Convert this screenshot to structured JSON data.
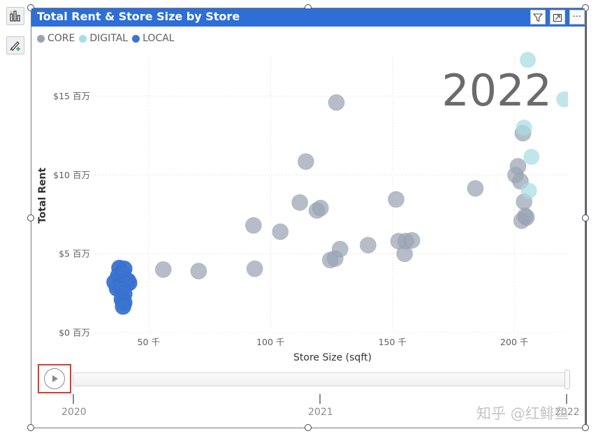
{
  "toolbar": {
    "left_icons": [
      "bar-chart-icon",
      "format-brush-icon"
    ]
  },
  "visual": {
    "title": "Total Rent & Store Size by Store",
    "header_icons": [
      "filter-icon",
      "focus-mode-icon",
      "more-options-icon"
    ],
    "more_label": "···"
  },
  "legend": {
    "items": [
      {
        "label": "CORE",
        "color": "#9aa3b4"
      },
      {
        "label": "DIGITAL",
        "color": "#a8dde2"
      },
      {
        "label": "LOCAL",
        "color": "#3b73d0"
      }
    ]
  },
  "play_axis": {
    "current_label": "2022",
    "ticks": [
      "2020",
      "2021",
      "2022"
    ],
    "play_icon": "play-icon"
  },
  "watermark": "知乎 @红鲱鱼",
  "chart_data": {
    "type": "scatter",
    "title": "Total Rent & Store Size by Store",
    "xlabel": "Store Size (sqft)",
    "ylabel": "Total Rent",
    "xlim": [
      28000,
      222000
    ],
    "ylim": [
      0,
      18000000
    ],
    "x_ticks": [
      50000,
      100000,
      150000,
      200000
    ],
    "x_tick_labels": [
      "50 千",
      "100 千",
      "150 千",
      "200 千"
    ],
    "y_ticks": [
      0,
      5000000,
      10000000,
      15000000
    ],
    "y_tick_labels": [
      "$0 百万",
      "$5 百万",
      "$10 百万",
      "$15 百万"
    ],
    "grid": true,
    "legend_position": "top-left",
    "series": [
      {
        "name": "CORE",
        "color": "#9aa3b4",
        "points": [
          [
            56000,
            4000000
          ],
          [
            70500,
            3900000
          ],
          [
            93000,
            6800000
          ],
          [
            93500,
            4050000
          ],
          [
            104000,
            6400000
          ],
          [
            112000,
            8250000
          ],
          [
            114500,
            10850000
          ],
          [
            119000,
            7750000
          ],
          [
            120500,
            7900000
          ],
          [
            124500,
            4600000
          ],
          [
            126500,
            4700000
          ],
          [
            127000,
            14600000
          ],
          [
            128500,
            5300000
          ],
          [
            140000,
            5550000
          ],
          [
            151500,
            8450000
          ],
          [
            152500,
            5800000
          ],
          [
            155000,
            5000000
          ],
          [
            155500,
            5800000
          ],
          [
            158000,
            5850000
          ],
          [
            184000,
            9150000
          ],
          [
            200500,
            10000000
          ],
          [
            201500,
            10550000
          ],
          [
            202500,
            9600000
          ],
          [
            203000,
            7100000
          ],
          [
            203500,
            12650000
          ],
          [
            204000,
            8300000
          ],
          [
            204500,
            7400000
          ],
          [
            205000,
            7300000
          ]
        ]
      },
      {
        "name": "DIGITAL",
        "color": "#a8dde2",
        "points": [
          [
            205500,
            17300000
          ],
          [
            204000,
            13000000
          ],
          [
            207000,
            11150000
          ],
          [
            206000,
            9000000
          ],
          [
            220500,
            14800000
          ]
        ]
      },
      {
        "name": "LOCAL",
        "color": "#3b73d0",
        "points": [
          [
            38000,
            4100000
          ],
          [
            40000,
            4050000
          ],
          [
            37500,
            3600000
          ],
          [
            39500,
            3700000
          ],
          [
            41500,
            3300000
          ],
          [
            36000,
            3200000
          ],
          [
            42000,
            3150000
          ],
          [
            38500,
            3000000
          ],
          [
            40500,
            3050000
          ],
          [
            37000,
            2800000
          ],
          [
            39000,
            2700000
          ],
          [
            40000,
            2450000
          ],
          [
            39000,
            2100000
          ],
          [
            40000,
            1900000
          ],
          [
            39500,
            1650000
          ]
        ]
      }
    ]
  }
}
